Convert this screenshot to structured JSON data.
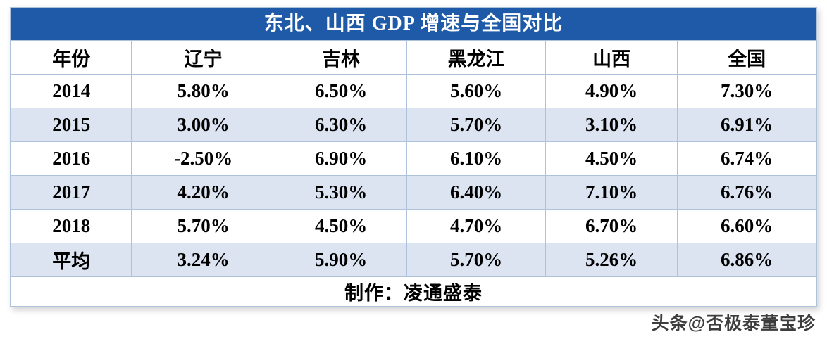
{
  "title": "东北、山西 GDP 增速与全国对比",
  "footer": {
    "text": "制作：凌通盛泰"
  },
  "watermark": {
    "text": "头条@否极泰董宝珍"
  },
  "chart_data": {
    "type": "table",
    "title": "东北、山西 GDP 增速与全国对比",
    "columns": [
      "年份",
      "辽宁",
      "吉林",
      "黑龙江",
      "山西",
      "全国"
    ],
    "rows": [
      [
        "2014",
        "5.80%",
        "6.50%",
        "5.60%",
        "4.90%",
        "7.30%"
      ],
      [
        "2015",
        "3.00%",
        "6.30%",
        "5.70%",
        "3.10%",
        "6.91%"
      ],
      [
        "2016",
        "-2.50%",
        "6.90%",
        "6.10%",
        "4.50%",
        "6.74%"
      ],
      [
        "2017",
        "4.20%",
        "5.30%",
        "6.40%",
        "7.10%",
        "6.76%"
      ],
      [
        "2018",
        "5.70%",
        "4.50%",
        "4.70%",
        "6.70%",
        "6.60%"
      ],
      [
        "平均",
        "3.24%",
        "5.90%",
        "5.70%",
        "5.26%",
        "6.86%"
      ]
    ],
    "banded_rows": [
      "2015",
      "2017",
      "平均"
    ]
  },
  "colors": {
    "title_bg": "#1E5AA8",
    "title_text": "#FFFFFF",
    "band_bg": "#DCE4F1",
    "border": "#AFC2DD",
    "text": "#000000",
    "watermark": "#3D3D3D"
  }
}
